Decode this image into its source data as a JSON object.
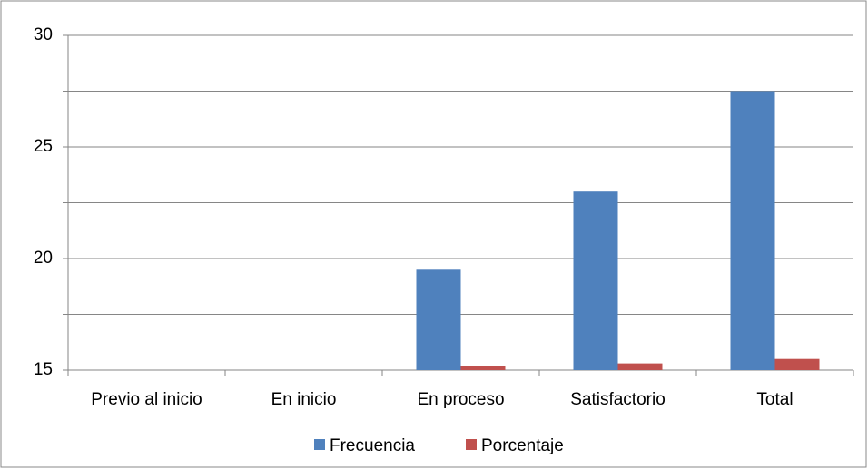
{
  "chart_data": {
    "type": "bar",
    "categories": [
      "Previo al inicio",
      "En inicio",
      "En proceso",
      "Satisfactorio",
      "Total"
    ],
    "series": [
      {
        "name": "Frecuencia",
        "color": "#4f81bd",
        "values": [
          null,
          null,
          19.5,
          23,
          27.5
        ]
      },
      {
        "name": "Porcentaje",
        "color": "#c0504d",
        "values": [
          null,
          null,
          15.2,
          15.3,
          15.5
        ]
      }
    ],
    "ylim": [
      15,
      30
    ],
    "yticks": [
      15,
      20,
      25,
      30
    ],
    "minor_yticks": [
      17.5,
      22.5,
      27.5
    ],
    "grid": true,
    "legend": "bottom"
  }
}
